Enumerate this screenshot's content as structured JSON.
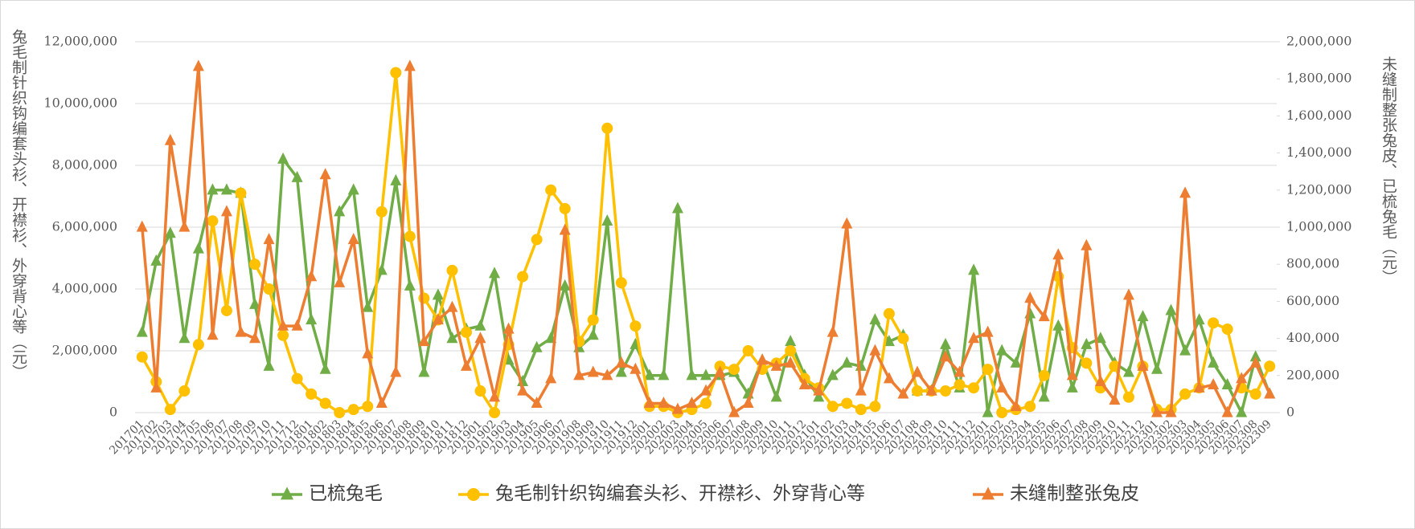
{
  "chart_data": {
    "type": "line",
    "ylabel": "兔毛制针织钩编套头衫、开襟衫、外穿背心等（元）",
    "y2label": "未缝制整张兔皮、已梳兔毛（元）",
    "categories": [
      "201701",
      "201702",
      "201703",
      "201704",
      "201705",
      "201706",
      "201707",
      "201708",
      "201709",
      "201710",
      "201711",
      "201712",
      "201801",
      "201802",
      "201803",
      "201804",
      "201805",
      "201806",
      "201807",
      "201808",
      "201809",
      "201810",
      "201811",
      "201812",
      "201901",
      "201902",
      "201903",
      "201904",
      "201905",
      "201906",
      "201907",
      "201908",
      "201909",
      "201910",
      "201911",
      "201912",
      "202001",
      "202002",
      "202003",
      "202004",
      "202005",
      "202006",
      "202007",
      "202008",
      "202009",
      "202010",
      "202011",
      "202012",
      "202101",
      "202102",
      "202103",
      "202104",
      "202105",
      "202106",
      "202107",
      "202108",
      "202109",
      "202110",
      "202111",
      "202112",
      "202201",
      "202202",
      "202203",
      "202204",
      "202205",
      "202206",
      "202207",
      "202208",
      "202209",
      "202210",
      "202211",
      "202212",
      "202301",
      "202302",
      "202303",
      "202304",
      "202305",
      "202306",
      "202307",
      "202308",
      "202309"
    ],
    "ylim": [
      0,
      12000000
    ],
    "yticks": [
      0,
      {
        "value": 2000000,
        "label": "2,000,000"
      },
      {
        "value": 4000000,
        "label": "4,000,000"
      },
      {
        "value": 6000000,
        "label": "6,000,000"
      },
      {
        "value": 8000000,
        "label": "8,000,000"
      },
      {
        "value": 10000000,
        "label": "10,000,000"
      },
      {
        "value": 12000000,
        "label": "12,000,000"
      }
    ],
    "y2lim": [
      0,
      2000000
    ],
    "y2ticks": [
      0,
      {
        "value": 200000,
        "label": "200,000"
      },
      {
        "value": 400000,
        "label": "400,000"
      },
      {
        "value": 600000,
        "label": "600,000"
      },
      {
        "value": 800000,
        "label": "800,000"
      },
      {
        "value": 1000000,
        "label": "1,000,000"
      },
      {
        "value": 1200000,
        "label": "1,200,000"
      },
      {
        "value": 1400000,
        "label": "1,400,000"
      },
      {
        "value": 1600000,
        "label": "1,600,000"
      },
      {
        "value": 1800000,
        "label": "1,800,000"
      },
      {
        "value": 2000000,
        "label": "2,000,000"
      }
    ],
    "grid": true,
    "legend": "bottom",
    "series": [
      {
        "name": "已梳兔毛",
        "color": "#70ad47",
        "axis": "y2",
        "marker": "triangle",
        "values": [
          433000,
          817000,
          967000,
          400000,
          883000,
          1200000,
          1200000,
          1183000,
          583000,
          250000,
          1367000,
          1267000,
          500000,
          233000,
          1083000,
          1200000,
          567000,
          767000,
          1250000,
          683000,
          217000,
          633000,
          400000,
          450000,
          467000,
          750000,
          283000,
          167000,
          350000,
          400000,
          683000,
          350000,
          417000,
          1033000,
          217000,
          367000,
          200000,
          200000,
          1100000,
          200000,
          200000,
          200000,
          217000,
          100000,
          283000,
          83000,
          383000,
          200000,
          83000,
          200000,
          267000,
          250000,
          500000,
          383000,
          417000,
          117000,
          117000,
          367000,
          133000,
          767000,
          0,
          333000,
          267000,
          533000,
          83000,
          467000,
          133000,
          367000,
          400000,
          267000,
          217000,
          517000,
          233000,
          550000,
          333000,
          500000,
          267000,
          150000,
          0,
          300000,
          100000
        ]
      },
      {
        "name": "兔毛制针织钩编套头衫、开襟衫、外穿背心等",
        "color": "#ffc000",
        "marker": "circle",
        "values": [
          1800000,
          1000000,
          100000,
          700000,
          2200000,
          6200000,
          3300000,
          7100000,
          4800000,
          4000000,
          2500000,
          1100000,
          600000,
          300000,
          0,
          100000,
          200000,
          6500000,
          11000000,
          5700000,
          3700000,
          3000000,
          4600000,
          2600000,
          700000,
          0,
          2200000,
          4400000,
          5600000,
          7200000,
          6600000,
          2300000,
          3000000,
          9200000,
          4200000,
          2800000,
          200000,
          200000,
          0,
          100000,
          300000,
          1500000,
          1400000,
          2000000,
          1400000,
          1600000,
          2000000,
          1100000,
          800000,
          200000,
          300000,
          100000,
          200000,
          3200000,
          2400000,
          700000,
          700000,
          700000,
          900000,
          800000,
          1400000,
          0,
          100000,
          200000,
          1200000,
          4400000,
          2100000,
          1600000,
          800000,
          1500000,
          500000,
          1500000,
          100000,
          100000,
          600000,
          800000,
          2900000,
          2700000,
          800000,
          600000,
          1500000
        ]
      },
      {
        "name": "未缝制整张兔皮",
        "color": "#ed7d31",
        "axis": "y2",
        "marker": "triangle",
        "values": [
          1000000,
          133000,
          1467000,
          1000000,
          1867000,
          417000,
          1083000,
          433000,
          400000,
          933000,
          467000,
          467000,
          733000,
          1283000,
          700000,
          933000,
          317000,
          50000,
          217000,
          1867000,
          383000,
          500000,
          567000,
          250000,
          400000,
          83000,
          450000,
          117000,
          50000,
          183000,
          983000,
          200000,
          217000,
          200000,
          267000,
          233000,
          50000,
          50000,
          17000,
          50000,
          117000,
          217000,
          0,
          50000,
          283000,
          250000,
          267000,
          150000,
          117000,
          433000,
          1017000,
          117000,
          333000,
          183000,
          100000,
          217000,
          117000,
          300000,
          217000,
          400000,
          433000,
          133000,
          33000,
          617000,
          517000,
          850000,
          200000,
          900000,
          167000,
          67000,
          633000,
          250000,
          0,
          0,
          1183000,
          133000,
          150000,
          0,
          183000,
          267000,
          100000
        ]
      }
    ]
  }
}
